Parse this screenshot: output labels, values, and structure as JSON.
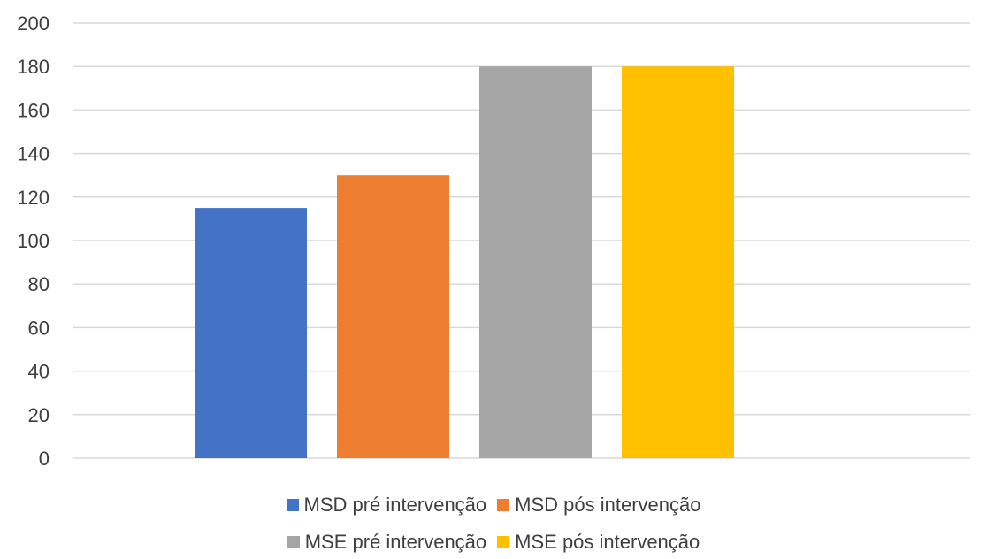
{
  "chart_data": {
    "type": "bar",
    "categories": [
      ""
    ],
    "series": [
      {
        "name": "MSD pré intervenção",
        "values": [
          115
        ],
        "color": "#4472C4"
      },
      {
        "name": "MSD pós intervenção",
        "values": [
          130
        ],
        "color": "#ED7D31"
      },
      {
        "name": "MSE pré intervenção",
        "values": [
          180
        ],
        "color": "#A5A5A5"
      },
      {
        "name": "MSE pós intervenção",
        "values": [
          180
        ],
        "color": "#FFC000"
      }
    ],
    "title": "",
    "xlabel": "",
    "ylabel": "",
    "ylim": [
      0,
      200
    ],
    "yticks": [
      "0",
      "20",
      "40",
      "60",
      "80",
      "100",
      "120",
      "140",
      "160",
      "180",
      "200"
    ],
    "grid": true,
    "gridColor": "#D9D9D9",
    "legend_position": "bottom"
  }
}
